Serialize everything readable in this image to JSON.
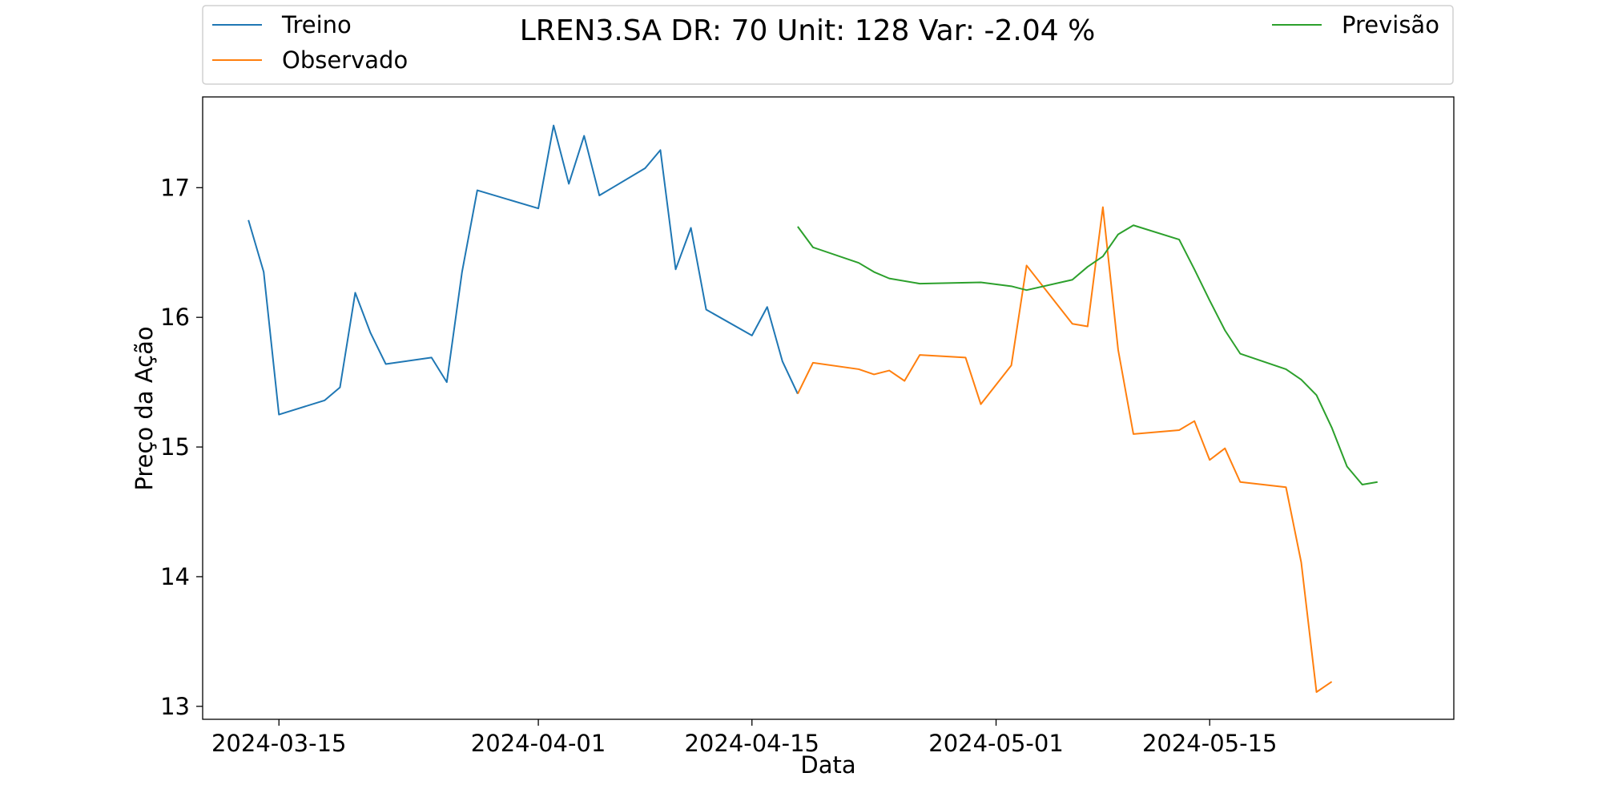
{
  "chart_data": {
    "type": "line",
    "title": "LREN3.SA DR: 70 Unit: 128 Var: -2.04 %",
    "xlabel": "Data",
    "ylabel": "Preço da Ação",
    "x_ticks": [
      "2024-03-15",
      "2024-04-01",
      "2024-04-15",
      "2024-05-01",
      "2024-05-15"
    ],
    "y_ticks": [
      13,
      14,
      15,
      16,
      17
    ],
    "xlim": [
      "2024-03-10",
      "2024-05-31"
    ],
    "ylim": [
      12.9,
      17.7
    ],
    "legend": {
      "placement": "top, outside plot"
    },
    "grid": false,
    "series": [
      {
        "name": "Treino",
        "color": "#1f77b4",
        "points": [
          [
            "2024-03-13",
            16.75
          ],
          [
            "2024-03-14",
            16.35
          ],
          [
            "2024-03-15",
            15.25
          ],
          [
            "2024-03-18",
            15.36
          ],
          [
            "2024-03-19",
            15.46
          ],
          [
            "2024-03-20",
            16.19
          ],
          [
            "2024-03-21",
            15.88
          ],
          [
            "2024-03-22",
            15.64
          ],
          [
            "2024-03-25",
            15.69
          ],
          [
            "2024-03-26",
            15.5
          ],
          [
            "2024-03-27",
            16.35
          ],
          [
            "2024-03-28",
            16.98
          ],
          [
            "2024-04-01",
            16.84
          ],
          [
            "2024-04-02",
            17.48
          ],
          [
            "2024-04-03",
            17.03
          ],
          [
            "2024-04-04",
            17.4
          ],
          [
            "2024-04-05",
            16.94
          ],
          [
            "2024-04-08",
            17.15
          ],
          [
            "2024-04-09",
            17.29
          ],
          [
            "2024-04-10",
            16.37
          ],
          [
            "2024-04-11",
            16.69
          ],
          [
            "2024-04-12",
            16.06
          ],
          [
            "2024-04-15",
            15.86
          ],
          [
            "2024-04-16",
            16.08
          ],
          [
            "2024-04-17",
            15.66
          ],
          [
            "2024-04-18",
            15.41
          ]
        ]
      },
      {
        "name": "Observado",
        "color": "#ff7f0e",
        "points": [
          [
            "2024-04-18",
            15.41
          ],
          [
            "2024-04-19",
            15.65
          ],
          [
            "2024-04-22",
            15.6
          ],
          [
            "2024-04-23",
            15.56
          ],
          [
            "2024-04-24",
            15.59
          ],
          [
            "2024-04-25",
            15.51
          ],
          [
            "2024-04-26",
            15.71
          ],
          [
            "2024-04-29",
            15.69
          ],
          [
            "2024-04-30",
            15.33
          ],
          [
            "2024-05-02",
            15.63
          ],
          [
            "2024-05-03",
            16.4
          ],
          [
            "2024-05-06",
            15.95
          ],
          [
            "2024-05-07",
            15.93
          ],
          [
            "2024-05-08",
            16.85
          ],
          [
            "2024-05-09",
            15.75
          ],
          [
            "2024-05-10",
            15.1
          ],
          [
            "2024-05-13",
            15.13
          ],
          [
            "2024-05-14",
            15.2
          ],
          [
            "2024-05-15",
            14.9
          ],
          [
            "2024-05-16",
            14.99
          ],
          [
            "2024-05-17",
            14.73
          ],
          [
            "2024-05-20",
            14.69
          ],
          [
            "2024-05-21",
            14.11
          ],
          [
            "2024-05-22",
            13.11
          ],
          [
            "2024-05-23",
            13.19
          ]
        ]
      },
      {
        "name": "Previsão",
        "color": "#2ca02c",
        "points": [
          [
            "2024-04-18",
            16.7
          ],
          [
            "2024-04-19",
            16.54
          ],
          [
            "2024-04-22",
            16.42
          ],
          [
            "2024-04-23",
            16.35
          ],
          [
            "2024-04-24",
            16.3
          ],
          [
            "2024-04-26",
            16.26
          ],
          [
            "2024-04-30",
            16.27
          ],
          [
            "2024-05-02",
            16.24
          ],
          [
            "2024-05-03",
            16.21
          ],
          [
            "2024-05-06",
            16.29
          ],
          [
            "2024-05-07",
            16.39
          ],
          [
            "2024-05-08",
            16.47
          ],
          [
            "2024-05-09",
            16.64
          ],
          [
            "2024-05-10",
            16.71
          ],
          [
            "2024-05-13",
            16.6
          ],
          [
            "2024-05-14",
            16.37
          ],
          [
            "2024-05-15",
            16.13
          ],
          [
            "2024-05-16",
            15.9
          ],
          [
            "2024-05-17",
            15.72
          ],
          [
            "2024-05-20",
            15.6
          ],
          [
            "2024-05-21",
            15.52
          ],
          [
            "2024-05-22",
            15.4
          ],
          [
            "2024-05-23",
            15.15
          ],
          [
            "2024-05-24",
            14.85
          ],
          [
            "2024-05-25",
            14.71
          ],
          [
            "2024-05-26",
            14.73
          ]
        ]
      }
    ]
  }
}
